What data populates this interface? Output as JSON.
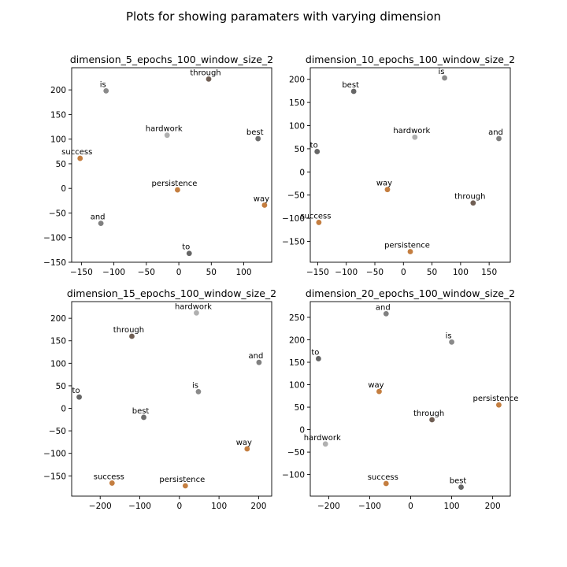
{
  "figure": {
    "title": "Plots for showing paramaters with varying dimension"
  },
  "chart_data": [
    {
      "type": "scatter",
      "title": "dimension_5_epochs_100_window_size_2",
      "xlabel": "",
      "ylabel": "",
      "xlim": [
        -165,
        143
      ],
      "ylim": [
        -150,
        245
      ],
      "xticks": [
        -150,
        -100,
        -50,
        0,
        50,
        100
      ],
      "yticks": [
        -150,
        -100,
        -50,
        0,
        50,
        100,
        150,
        200
      ],
      "points": [
        {
          "label": "through",
          "x": 46,
          "y": 222,
          "color": "#705f54"
        },
        {
          "label": "is",
          "x": -112,
          "y": 198,
          "color": "#8a8a8a"
        },
        {
          "label": "hardwork",
          "x": -18,
          "y": 108,
          "color": "#b0b0b0"
        },
        {
          "label": "best",
          "x": 122,
          "y": 101,
          "color": "#6e6e6e"
        },
        {
          "label": "success",
          "x": -152,
          "y": 61,
          "color": "#c47e40"
        },
        {
          "label": "persistence",
          "x": -2,
          "y": -3,
          "color": "#c47e40"
        },
        {
          "label": "way",
          "x": 132,
          "y": -34,
          "color": "#c47e40"
        },
        {
          "label": "and",
          "x": -120,
          "y": -71,
          "color": "#808080"
        },
        {
          "label": "to",
          "x": 16,
          "y": -132,
          "color": "#666666"
        }
      ]
    },
    {
      "type": "scatter",
      "title": "dimension_10_epochs_100_window_size_2",
      "xlabel": "",
      "ylabel": "",
      "xlim": [
        -163,
        187
      ],
      "ylim": [
        -195,
        225
      ],
      "xticks": [
        -150,
        -100,
        -50,
        0,
        50,
        100,
        150
      ],
      "yticks": [
        -150,
        -100,
        -50,
        0,
        50,
        100,
        150,
        200
      ],
      "points": [
        {
          "label": "is",
          "x": 72,
          "y": 203,
          "color": "#8a8a8a"
        },
        {
          "label": "best",
          "x": -87,
          "y": 174,
          "color": "#666666"
        },
        {
          "label": "hardwork",
          "x": 20,
          "y": 75,
          "color": "#b0b0b0"
        },
        {
          "label": "and",
          "x": 167,
          "y": 72,
          "color": "#808080"
        },
        {
          "label": "to",
          "x": -151,
          "y": 44,
          "color": "#666666"
        },
        {
          "label": "way",
          "x": -28,
          "y": -38,
          "color": "#c47e40"
        },
        {
          "label": "through",
          "x": 122,
          "y": -67,
          "color": "#705f54"
        },
        {
          "label": "success",
          "x": -148,
          "y": -109,
          "color": "#c47e40"
        },
        {
          "label": "persistence",
          "x": 12,
          "y": -172,
          "color": "#c47e40"
        }
      ]
    },
    {
      "type": "scatter",
      "title": "dimension_15_epochs_100_window_size_2",
      "xlabel": "",
      "ylabel": "",
      "xlim": [
        -272,
        233
      ],
      "ylim": [
        -195,
        237
      ],
      "xticks": [
        -200,
        -100,
        0,
        100,
        200
      ],
      "yticks": [
        -150,
        -100,
        -50,
        0,
        50,
        100,
        150,
        200
      ],
      "points": [
        {
          "label": "hardwork",
          "x": 43,
          "y": 212,
          "color": "#b0b0b0"
        },
        {
          "label": "through",
          "x": -120,
          "y": 160,
          "color": "#705f54"
        },
        {
          "label": "and",
          "x": 201,
          "y": 102,
          "color": "#808080"
        },
        {
          "label": "is",
          "x": 48,
          "y": 37,
          "color": "#8a8a8a"
        },
        {
          "label": "to",
          "x": -253,
          "y": 25,
          "color": "#666666"
        },
        {
          "label": "best",
          "x": -90,
          "y": -20,
          "color": "#6e6e6e"
        },
        {
          "label": "way",
          "x": 171,
          "y": -90,
          "color": "#c47e40"
        },
        {
          "label": "success",
          "x": -170,
          "y": -166,
          "color": "#c47e40"
        },
        {
          "label": "persistence",
          "x": 15,
          "y": -172,
          "color": "#c47e40"
        }
      ]
    },
    {
      "type": "scatter",
      "title": "dimension_20_epochs_100_window_size_2",
      "xlabel": "",
      "ylabel": "",
      "xlim": [
        -245,
        243
      ],
      "ylim": [
        -148,
        285
      ],
      "xticks": [
        -200,
        -100,
        0,
        100,
        200
      ],
      "yticks": [
        -100,
        -50,
        0,
        50,
        100,
        150,
        200,
        250
      ],
      "points": [
        {
          "label": "and",
          "x": -60,
          "y": 258,
          "color": "#808080"
        },
        {
          "label": "is",
          "x": 100,
          "y": 195,
          "color": "#8a8a8a"
        },
        {
          "label": "to",
          "x": -225,
          "y": 158,
          "color": "#666666"
        },
        {
          "label": "way",
          "x": -77,
          "y": 85,
          "color": "#c47e40"
        },
        {
          "label": "persistence",
          "x": 215,
          "y": 55,
          "color": "#c47e40"
        },
        {
          "label": "through",
          "x": 52,
          "y": 22,
          "color": "#705f54"
        },
        {
          "label": "hardwork",
          "x": -208,
          "y": -32,
          "color": "#b0b0b0"
        },
        {
          "label": "success",
          "x": -60,
          "y": -120,
          "color": "#c47e40"
        },
        {
          "label": "best",
          "x": 123,
          "y": -128,
          "color": "#666666"
        }
      ]
    }
  ]
}
